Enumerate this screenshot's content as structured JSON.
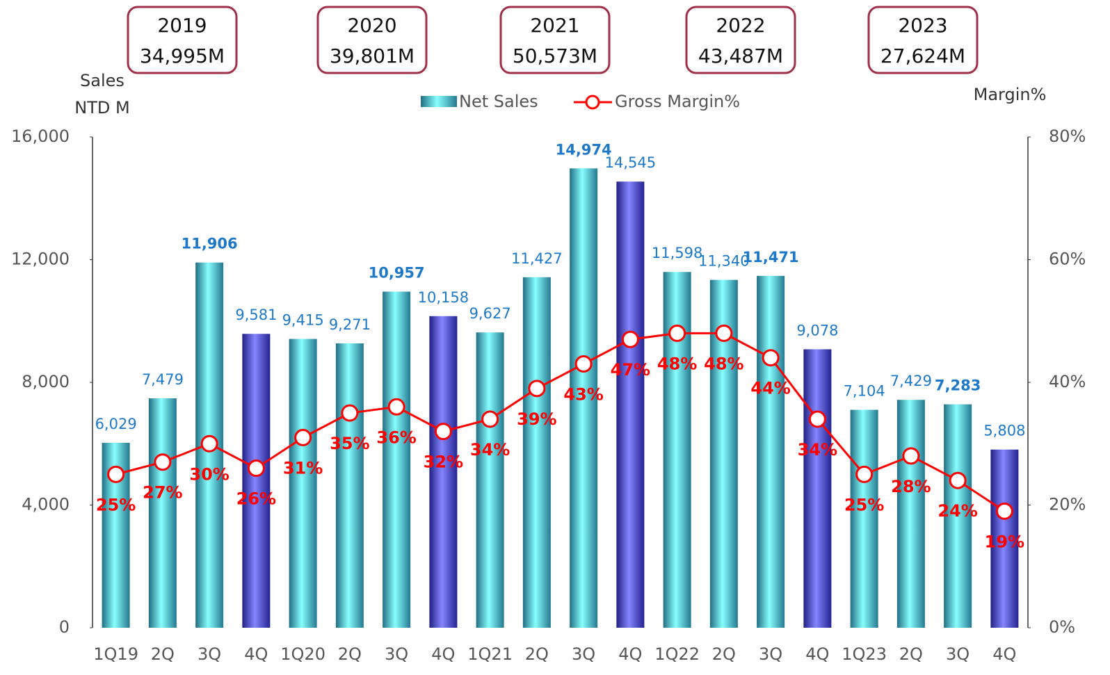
{
  "chart_data": {
    "type": "bar",
    "year_totals": [
      {
        "year": "2019",
        "total": "34,995M"
      },
      {
        "year": "2020",
        "total": "39,801M"
      },
      {
        "year": "2021",
        "total": "50,573M"
      },
      {
        "year": "2022",
        "total": "43,487M"
      },
      {
        "year": "2023",
        "total": "27,624M"
      }
    ],
    "y_label": [
      "Sales",
      "NTD M"
    ],
    "y2_label": "Margin%",
    "categories": [
      "1Q19",
      "2Q",
      "3Q",
      "4Q",
      "1Q20",
      "2Q",
      "3Q",
      "4Q",
      "1Q21",
      "2Q",
      "3Q",
      "4Q",
      "1Q22",
      "2Q",
      "3Q",
      "4Q",
      "1Q23",
      "2Q",
      "3Q",
      "4Q"
    ],
    "series": [
      {
        "name": "Net Sales",
        "type": "bar",
        "color": "#3cc8f0",
        "colors": [
          "#3cc8f0",
          "#3cc8f0",
          "#3cc8f0",
          "#3a3af0",
          "#3cc8f0",
          "#3cc8f0",
          "#3cc8f0",
          "#3a3af0",
          "#3cc8f0",
          "#3cc8f0",
          "#3cc8f0",
          "#3a3af0",
          "#3cc8f0",
          "#3cc8f0",
          "#3cc8f0",
          "#3a3af0",
          "#3cc8f0",
          "#3cc8f0",
          "#3cc8f0",
          "#3a3af0"
        ],
        "values": [
          6029,
          7479,
          11906,
          9581,
          9415,
          9271,
          10957,
          10158,
          9627,
          11427,
          14974,
          14545,
          11598,
          11340,
          11471,
          9078,
          7104,
          7429,
          7283,
          5808
        ],
        "value_labels": [
          "6,029",
          "7,479",
          "11,906",
          "9,581",
          "9,415",
          "9,271",
          "10,957",
          "10,158",
          "9,627",
          "11,427",
          "14,974",
          "14,545",
          "11,598",
          "11,340",
          "11,471",
          "9,078",
          "7,104",
          "7,429",
          "7,283",
          "5,808"
        ]
      },
      {
        "name": "Gross Margin%",
        "type": "line",
        "axis": "y2",
        "color": "#ff0000",
        "values": [
          25,
          27,
          30,
          26,
          31,
          35,
          36,
          32,
          34,
          39,
          43,
          47,
          48,
          48,
          44,
          34,
          25,
          28,
          24,
          19
        ],
        "value_labels": [
          "25%",
          "27%",
          "30%",
          "26%",
          "31%",
          "35%",
          "36%",
          "32%",
          "34%",
          "39%",
          "43%",
          "47%",
          "48%",
          "48%",
          "44%",
          "34%",
          "25%",
          "28%",
          "24%",
          "19%"
        ]
      }
    ],
    "ylim": [
      0,
      16000
    ],
    "yticks": [
      0,
      {
        "value": 4000,
        "label": "4,000"
      },
      {
        "value": 8000,
        "label": "8,000"
      },
      {
        "value": 12000,
        "label": "12,000"
      },
      {
        "value": 16000,
        "label": "16,000"
      }
    ],
    "y2lim": [
      0,
      80
    ],
    "y2ticks": [
      {
        "value": 0,
        "label": "0%"
      },
      {
        "value": 20,
        "label": "20%"
      },
      {
        "value": 40,
        "label": "40%"
      },
      {
        "value": 60,
        "label": "60%"
      },
      {
        "value": 80,
        "label": "80%"
      }
    ]
  }
}
